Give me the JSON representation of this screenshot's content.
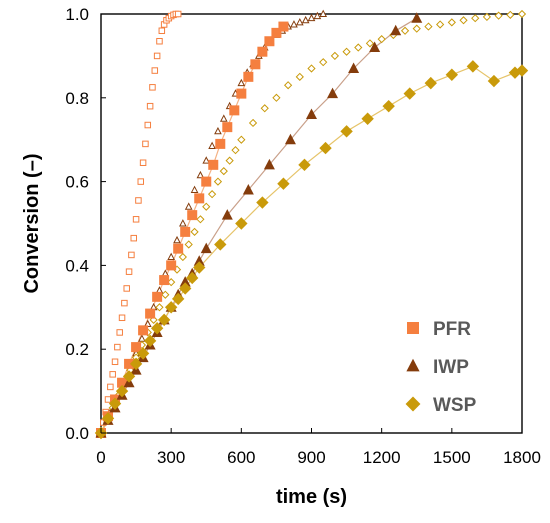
{
  "chart_data": {
    "type": "scatter",
    "title": "",
    "xlabel": "time (s)",
    "ylabel": "Conversion (–)",
    "xlim": [
      0,
      1800
    ],
    "ylim": [
      0,
      1.0
    ],
    "x_ticks": [
      "0",
      "300",
      "600",
      "900",
      "1200",
      "1500",
      "1800"
    ],
    "y_ticks": [
      "0.0",
      "0.2",
      "0.4",
      "0.6",
      "0.8",
      "1.0"
    ],
    "grid": false,
    "legend_position": "bottom-right",
    "legend": [
      {
        "label": "PFR",
        "marker": "square",
        "color": "#F57F3F"
      },
      {
        "label": "IWP",
        "marker": "triangle",
        "color": "#843C0C"
      },
      {
        "label": "WSP",
        "marker": "diamond",
        "color": "#C99A0A"
      }
    ],
    "series": [
      {
        "name": "PFR",
        "marker": "square",
        "filled": true,
        "color": "#F57F3F",
        "x": [
          0,
          30,
          60,
          90,
          120,
          150,
          180,
          210,
          240,
          270,
          300,
          330,
          360,
          390,
          420,
          450,
          480,
          510,
          540,
          570,
          600,
          630,
          660,
          690,
          720,
          750,
          780
        ],
        "y": [
          0.0,
          0.04,
          0.08,
          0.12,
          0.165,
          0.205,
          0.245,
          0.285,
          0.325,
          0.365,
          0.4,
          0.44,
          0.48,
          0.52,
          0.56,
          0.6,
          0.64,
          0.69,
          0.73,
          0.77,
          0.81,
          0.85,
          0.88,
          0.91,
          0.935,
          0.955,
          0.97
        ]
      },
      {
        "name": "IWP",
        "marker": "triangle",
        "filled": true,
        "color": "#843C0C",
        "x": [
          0,
          30,
          60,
          90,
          120,
          150,
          180,
          210,
          240,
          270,
          300,
          330,
          360,
          390,
          420,
          450,
          540,
          630,
          720,
          810,
          900,
          990,
          1080,
          1170,
          1260,
          1350
        ],
        "y": [
          0.0,
          0.03,
          0.06,
          0.09,
          0.12,
          0.15,
          0.18,
          0.21,
          0.24,
          0.27,
          0.3,
          0.33,
          0.36,
          0.38,
          0.41,
          0.44,
          0.52,
          0.58,
          0.64,
          0.7,
          0.76,
          0.81,
          0.87,
          0.92,
          0.96,
          0.99
        ]
      },
      {
        "name": "WSP",
        "marker": "diamond",
        "filled": true,
        "color": "#C99A0A",
        "x": [
          0,
          30,
          60,
          90,
          120,
          150,
          180,
          210,
          240,
          270,
          300,
          330,
          360,
          390,
          420,
          510,
          600,
          690,
          780,
          870,
          960,
          1050,
          1140,
          1230,
          1320,
          1410,
          1500,
          1590,
          1680,
          1770,
          1800
        ],
        "y": [
          0.0,
          0.035,
          0.07,
          0.1,
          0.135,
          0.165,
          0.19,
          0.22,
          0.25,
          0.27,
          0.3,
          0.32,
          0.345,
          0.37,
          0.395,
          0.45,
          0.5,
          0.55,
          0.595,
          0.64,
          0.68,
          0.72,
          0.75,
          0.78,
          0.81,
          0.835,
          0.855,
          0.875,
          0.84,
          0.86,
          0.865
        ]
      },
      {
        "name": "PFR (open)",
        "marker": "square",
        "filled": false,
        "color": "#F57F3F",
        "x": [
          0,
          10,
          20,
          30,
          40,
          50,
          60,
          70,
          80,
          90,
          100,
          110,
          120,
          130,
          140,
          150,
          160,
          170,
          180,
          190,
          200,
          210,
          220,
          230,
          240,
          250,
          260,
          270,
          280,
          290,
          300,
          310,
          320,
          330
        ],
        "y": [
          0.0,
          0.025,
          0.05,
          0.08,
          0.11,
          0.14,
          0.17,
          0.205,
          0.24,
          0.275,
          0.31,
          0.345,
          0.385,
          0.425,
          0.465,
          0.51,
          0.555,
          0.6,
          0.645,
          0.69,
          0.735,
          0.78,
          0.825,
          0.865,
          0.9,
          0.935,
          0.96,
          0.975,
          0.985,
          0.99,
          0.995,
          0.998,
          1.0,
          1.0
        ]
      },
      {
        "name": "IWP (open)",
        "marker": "triangle",
        "filled": false,
        "color": "#843C0C",
        "x": [
          0,
          25,
          50,
          75,
          100,
          125,
          150,
          175,
          200,
          225,
          250,
          275,
          300,
          325,
          350,
          375,
          400,
          425,
          450,
          475,
          500,
          525,
          550,
          575,
          600,
          625,
          650,
          675,
          700,
          725,
          750,
          775,
          800,
          825,
          850,
          875,
          900,
          925,
          950
        ],
        "y": [
          0.0,
          0.03,
          0.06,
          0.09,
          0.12,
          0.155,
          0.19,
          0.225,
          0.26,
          0.3,
          0.34,
          0.38,
          0.42,
          0.46,
          0.5,
          0.54,
          0.58,
          0.615,
          0.65,
          0.685,
          0.72,
          0.75,
          0.78,
          0.81,
          0.835,
          0.86,
          0.88,
          0.9,
          0.92,
          0.935,
          0.95,
          0.96,
          0.97,
          0.975,
          0.98,
          0.985,
          0.99,
          0.995,
          1.0
        ]
      },
      {
        "name": "WSP (open)",
        "marker": "diamond",
        "filled": false,
        "color": "#C99A0A",
        "x": [
          0,
          25,
          50,
          75,
          100,
          125,
          150,
          175,
          200,
          225,
          250,
          275,
          300,
          325,
          350,
          375,
          400,
          425,
          450,
          475,
          500,
          525,
          550,
          575,
          600,
          650,
          700,
          750,
          800,
          850,
          900,
          950,
          1000,
          1050,
          1100,
          1150,
          1200,
          1250,
          1300,
          1350,
          1400,
          1450,
          1500,
          1550,
          1600,
          1650,
          1700,
          1750,
          1800
        ],
        "y": [
          0.0,
          0.03,
          0.06,
          0.09,
          0.12,
          0.15,
          0.18,
          0.21,
          0.24,
          0.27,
          0.3,
          0.33,
          0.36,
          0.39,
          0.42,
          0.45,
          0.48,
          0.51,
          0.54,
          0.57,
          0.6,
          0.625,
          0.65,
          0.675,
          0.7,
          0.74,
          0.775,
          0.8,
          0.83,
          0.85,
          0.87,
          0.885,
          0.9,
          0.91,
          0.92,
          0.93,
          0.94,
          0.95,
          0.96,
          0.965,
          0.97,
          0.975,
          0.98,
          0.985,
          0.99,
          0.993,
          0.996,
          0.998,
          1.0
        ]
      }
    ],
    "fit_lines": [
      {
        "for": "PFR",
        "color": "#F4B183"
      },
      {
        "for": "IWP",
        "color": "#C9A08A"
      },
      {
        "for": "WSP",
        "color": "#E6C46A"
      }
    ]
  }
}
